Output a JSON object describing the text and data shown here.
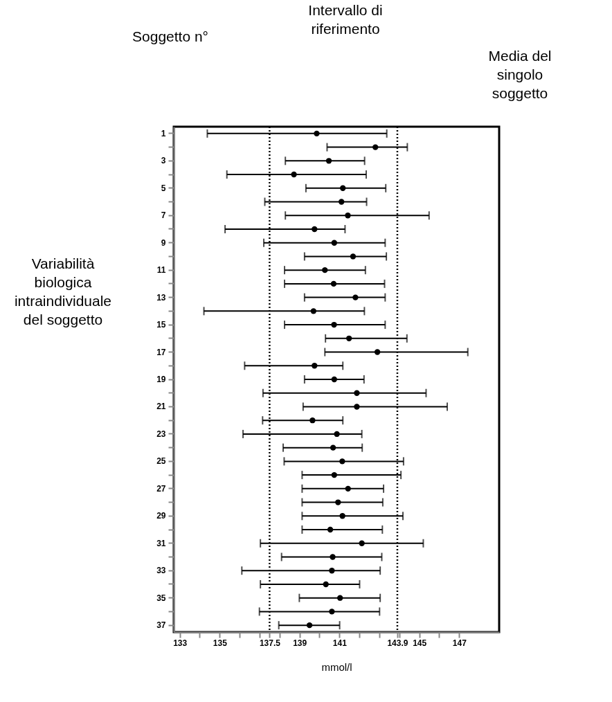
{
  "chart_data": {
    "type": "scatter",
    "orientation": "horizontal",
    "xlabel": "mmol/l",
    "categories": [
      "1",
      null,
      "3",
      null,
      "5",
      null,
      "7",
      null,
      "9",
      null,
      "11",
      null,
      "13",
      null,
      "15",
      null,
      "17",
      null,
      "19",
      null,
      "21",
      null,
      "23",
      null,
      "25",
      null,
      "27",
      null,
      "29",
      null,
      "31",
      null,
      "33",
      null,
      "35",
      null,
      "37"
    ],
    "series": [
      {
        "color": "#000000",
        "values": [
          139.86,
          142.8,
          140.47,
          138.72,
          141.17,
          141.1,
          141.42,
          139.75,
          140.74,
          141.68,
          140.27,
          140.71,
          141.8,
          139.7,
          140.73,
          141.48,
          142.9,
          139.75,
          140.74,
          141.87,
          141.87,
          139.65,
          140.87,
          140.68,
          141.14,
          140.74,
          141.43,
          140.93,
          141.15,
          140.54,
          142.12,
          140.66,
          140.62,
          140.32,
          141.03,
          140.62,
          139.5
        ],
        "errors": [
          [
            134.38,
            143.37
          ],
          [
            140.38,
            144.4
          ],
          [
            138.29,
            142.26
          ],
          [
            135.36,
            142.34
          ],
          [
            139.32,
            143.32
          ],
          [
            137.26,
            142.36
          ],
          [
            138.29,
            145.49
          ],
          [
            135.27,
            141.28
          ],
          [
            137.21,
            143.29
          ],
          [
            139.25,
            143.35
          ],
          [
            138.25,
            142.3
          ],
          [
            138.25,
            143.26
          ],
          [
            139.25,
            143.29
          ],
          [
            134.21,
            142.25
          ],
          [
            138.25,
            143.29
          ],
          [
            140.3,
            144.38
          ],
          [
            140.27,
            147.43
          ],
          [
            136.25,
            141.17
          ],
          [
            139.25,
            142.23
          ],
          [
            137.17,
            145.34
          ],
          [
            139.18,
            146.4
          ],
          [
            137.15,
            141.17
          ],
          [
            136.17,
            142.12
          ],
          [
            138.18,
            142.14
          ],
          [
            138.23,
            144.21
          ],
          [
            139.13,
            144.08
          ],
          [
            139.13,
            143.21
          ],
          [
            139.13,
            143.17
          ],
          [
            139.13,
            144.18
          ],
          [
            139.13,
            143.15
          ],
          [
            137.04,
            145.2
          ],
          [
            138.1,
            143.12
          ],
          [
            136.11,
            143.04
          ],
          [
            137.04,
            142.01
          ],
          [
            138.99,
            143.04
          ],
          [
            136.99,
            143.01
          ],
          [
            137.96,
            141.01
          ]
        ]
      }
    ],
    "xlim": [
      132.7,
      149
    ],
    "xticks": [
      133,
      {
        "value": 134,
        "label": null
      },
      135,
      {
        "value": 136,
        "label": null
      },
      {
        "value": 137,
        "label": null
      },
      137.5,
      {
        "value": 138,
        "label": null
      },
      139,
      {
        "value": 140,
        "label": null
      },
      141,
      {
        "value": 142,
        "label": null
      },
      {
        "value": 143,
        "label": null
      },
      143.9,
      {
        "value": 144,
        "label": null
      },
      145,
      {
        "value": 146,
        "label": null
      },
      147
    ],
    "ref_lines": [
      {
        "axis": "x",
        "value": 137.5,
        "line_style": "dotted",
        "color": "#000000"
      },
      {
        "axis": "x",
        "value": 143.9,
        "line_style": "dotted",
        "color": "#000000"
      }
    ],
    "annotations": [
      "Soggetto n°",
      "Intervallo di riferimento",
      "Media del singolo soggetto",
      "Variabilità biologica intraindividuale del soggetto"
    ],
    "marker": "circle",
    "grid": false
  }
}
